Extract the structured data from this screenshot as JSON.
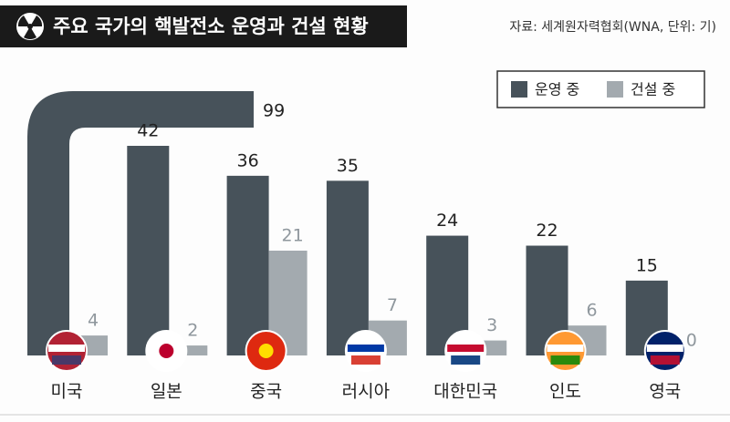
{
  "chart_data": {
    "type": "bar",
    "title": "주요 국가의 핵발전소 운영과 건설 현황",
    "source": "자료: 세계원자력협회(WNA, 단위: 기)",
    "categories": [
      "미국",
      "일본",
      "중국",
      "러시아",
      "대한민국",
      "인도",
      "영국"
    ],
    "series": [
      {
        "name": "운영 중",
        "color": "#47525a",
        "values": [
          99,
          42,
          36,
          35,
          24,
          22,
          15
        ]
      },
      {
        "name": "건설 중",
        "color": "#a3aaaf",
        "values": [
          4,
          2,
          21,
          7,
          3,
          6,
          0
        ]
      }
    ],
    "legend": "upper right"
  }
}
